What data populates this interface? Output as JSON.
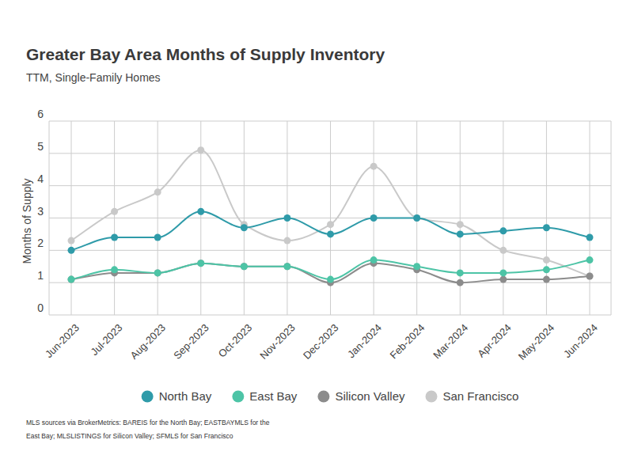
{
  "chart_data": {
    "type": "line",
    "title": "Greater Bay Area Months of Supply Inventory",
    "subtitle": "TTM, Single-Family Homes",
    "y_label": "Months of Supply",
    "note": "MLS sources via BrokerMetrics: BAREIS for the North Bay; EASTBAYMLS for the East Bay; MLSLISTINGS for Silicon Valley; SFMLS for San Francisco",
    "categories": [
      "Jun-2023",
      "Jul-2023",
      "Aug-2023",
      "Sep-2023",
      "Oct-2023",
      "Nov-2023",
      "Dec-2023",
      "Jan-2024",
      "Feb-2024",
      "Mar-2024",
      "Apr-2024",
      "May-2024",
      "Jun-2024"
    ],
    "series": [
      {
        "name": "North Bay",
        "color": "#2f9ba9",
        "values": [
          2.0,
          2.4,
          2.4,
          3.2,
          2.7,
          3.0,
          2.5,
          3.0,
          3.0,
          2.5,
          2.6,
          2.7,
          2.4
        ]
      },
      {
        "name": "East Bay",
        "color": "#4dc4a6",
        "values": [
          1.1,
          1.4,
          1.3,
          1.6,
          1.5,
          1.5,
          1.1,
          1.7,
          1.5,
          1.3,
          1.3,
          1.4,
          1.7
        ]
      },
      {
        "name": "Silicon Valley",
        "color": "#8c8c8c",
        "values": [
          1.1,
          1.3,
          1.3,
          1.6,
          1.5,
          1.5,
          1.0,
          1.6,
          1.4,
          1.0,
          1.1,
          1.1,
          1.2
        ]
      },
      {
        "name": "San Francisco",
        "color": "#c9c9c9",
        "values": [
          2.3,
          3.2,
          3.8,
          5.1,
          2.8,
          2.3,
          2.8,
          4.6,
          3.0,
          2.8,
          2.0,
          1.7,
          1.2
        ]
      }
    ],
    "ylim": [
      0,
      6
    ],
    "yticks": [
      0,
      1,
      2,
      3,
      4,
      5,
      6
    ],
    "grid": true,
    "legend": "bottom",
    "marker": "circle",
    "line_style": "smooth"
  }
}
